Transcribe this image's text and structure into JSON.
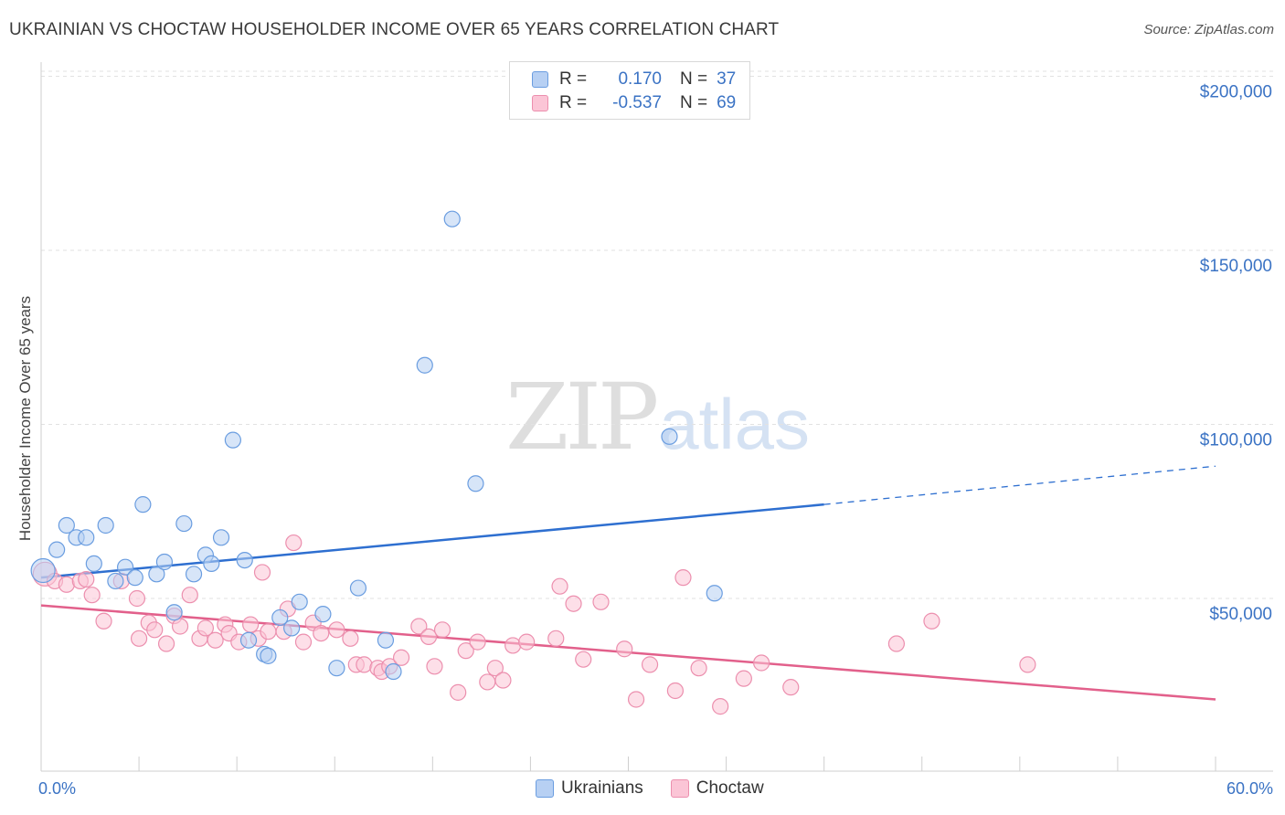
{
  "title": "UKRAINIAN VS CHOCTAW HOUSEHOLDER INCOME OVER 65 YEARS CORRELATION CHART",
  "source": "Source: ZipAtlas.com",
  "watermark": {
    "left": "ZIP",
    "right": "atlas"
  },
  "legend": [
    {
      "r_label": "R =",
      "r_value": "0.170",
      "n_label": "N =",
      "n_value": "37",
      "fill": "#b7d0f3",
      "stroke": "#6a9de0"
    },
    {
      "r_label": "R =",
      "r_value": "-0.537",
      "n_label": "N =",
      "n_value": "69",
      "fill": "#fbc5d6",
      "stroke": "#ec8fae"
    }
  ],
  "bottom_legend": [
    "Ukrainians",
    "Choctaw"
  ],
  "chart_data": {
    "type": "scatter",
    "title": "UKRAINIAN VS CHOCTAW HOUSEHOLDER INCOME OVER 65 YEARS CORRELATION CHART",
    "xlabel": "",
    "ylabel": "Householder Income Over 65 years",
    "xlim": [
      0,
      60
    ],
    "ylim": [
      0,
      210000
    ],
    "x_tick_labels": [
      "0.0%",
      "60.0%"
    ],
    "y_ticks": [
      50000,
      100000,
      150000,
      200000
    ],
    "y_tick_labels": [
      "$50,000",
      "$100,000",
      "$150,000",
      "$200,000"
    ],
    "grid": "horizontal dashed",
    "colors": {
      "ukrainians": "#6a9de0",
      "ukrainians_fill": "#b7d0f3",
      "ukrainians_line": "#2e6fd0",
      "choctaw": "#ec8fae",
      "choctaw_fill": "#fbc5d6",
      "choctaw_line": "#e2608b"
    },
    "series": [
      {
        "name": "Ukrainians",
        "points": [
          [
            0.1,
            58000
          ],
          [
            0.8,
            64000
          ],
          [
            1.3,
            71000
          ],
          [
            1.8,
            67500
          ],
          [
            2.3,
            67500
          ],
          [
            2.7,
            60000
          ],
          [
            3.3,
            71000
          ],
          [
            3.8,
            55000
          ],
          [
            4.3,
            59000
          ],
          [
            4.8,
            56000
          ],
          [
            5.2,
            77000
          ],
          [
            5.9,
            57000
          ],
          [
            6.3,
            60500
          ],
          [
            6.8,
            46000
          ],
          [
            7.3,
            71500
          ],
          [
            7.8,
            57000
          ],
          [
            8.4,
            62500
          ],
          [
            8.7,
            60000
          ],
          [
            9.2,
            67500
          ],
          [
            9.8,
            95500
          ],
          [
            10.4,
            61000
          ],
          [
            10.6,
            38000
          ],
          [
            11.4,
            34000
          ],
          [
            11.6,
            33500
          ],
          [
            12.2,
            44500
          ],
          [
            12.8,
            41500
          ],
          [
            13.2,
            49000
          ],
          [
            14.4,
            45500
          ],
          [
            15.1,
            30000
          ],
          [
            16.2,
            53000
          ],
          [
            17.6,
            38000
          ],
          [
            18.0,
            29000
          ],
          [
            19.6,
            117000
          ],
          [
            21.0,
            159000
          ],
          [
            22.2,
            83000
          ],
          [
            32.1,
            96500
          ],
          [
            34.4,
            51500
          ]
        ],
        "trend": {
          "x": [
            0,
            40,
            60
          ],
          "y": [
            56000,
            77000,
            88000
          ],
          "solid_until_x": 40
        }
      },
      {
        "name": "Choctaw",
        "points": [
          [
            0.2,
            57000
          ],
          [
            0.7,
            55000
          ],
          [
            1.3,
            54000
          ],
          [
            2.0,
            55000
          ],
          [
            2.3,
            55500
          ],
          [
            2.6,
            51000
          ],
          [
            3.2,
            43500
          ],
          [
            4.1,
            55000
          ],
          [
            4.9,
            50000
          ],
          [
            5.0,
            38500
          ],
          [
            5.5,
            43000
          ],
          [
            5.8,
            41000
          ],
          [
            6.4,
            37000
          ],
          [
            6.8,
            45000
          ],
          [
            7.1,
            42000
          ],
          [
            7.6,
            51000
          ],
          [
            8.1,
            38500
          ],
          [
            8.4,
            41500
          ],
          [
            8.9,
            38000
          ],
          [
            9.4,
            42500
          ],
          [
            9.6,
            40000
          ],
          [
            10.1,
            37500
          ],
          [
            10.7,
            42500
          ],
          [
            11.1,
            38500
          ],
          [
            11.3,
            57500
          ],
          [
            11.6,
            40500
          ],
          [
            12.4,
            40500
          ],
          [
            12.6,
            47000
          ],
          [
            12.9,
            66000
          ],
          [
            13.4,
            37500
          ],
          [
            13.9,
            43000
          ],
          [
            14.3,
            40000
          ],
          [
            15.1,
            41000
          ],
          [
            15.8,
            38500
          ],
          [
            16.1,
            31000
          ],
          [
            16.5,
            31000
          ],
          [
            17.2,
            30000
          ],
          [
            17.4,
            29000
          ],
          [
            17.8,
            30500
          ],
          [
            18.4,
            33000
          ],
          [
            19.3,
            42000
          ],
          [
            19.8,
            39000
          ],
          [
            20.1,
            30500
          ],
          [
            20.5,
            41000
          ],
          [
            21.3,
            23000
          ],
          [
            21.7,
            35000
          ],
          [
            22.3,
            37500
          ],
          [
            22.8,
            26000
          ],
          [
            23.2,
            30000
          ],
          [
            23.6,
            26500
          ],
          [
            24.1,
            36500
          ],
          [
            24.8,
            37500
          ],
          [
            26.3,
            38500
          ],
          [
            26.5,
            53500
          ],
          [
            27.2,
            48500
          ],
          [
            27.7,
            32500
          ],
          [
            28.6,
            49000
          ],
          [
            29.8,
            35500
          ],
          [
            30.4,
            21000
          ],
          [
            31.1,
            31000
          ],
          [
            32.4,
            23500
          ],
          [
            32.8,
            56000
          ],
          [
            33.6,
            30000
          ],
          [
            34.7,
            19000
          ],
          [
            35.9,
            27000
          ],
          [
            36.8,
            31500
          ],
          [
            38.3,
            24500
          ],
          [
            43.7,
            37000
          ],
          [
            45.5,
            43500
          ],
          [
            50.4,
            31000
          ]
        ],
        "trend": {
          "x": [
            0,
            60
          ],
          "y": [
            48000,
            21000
          ]
        }
      }
    ]
  }
}
